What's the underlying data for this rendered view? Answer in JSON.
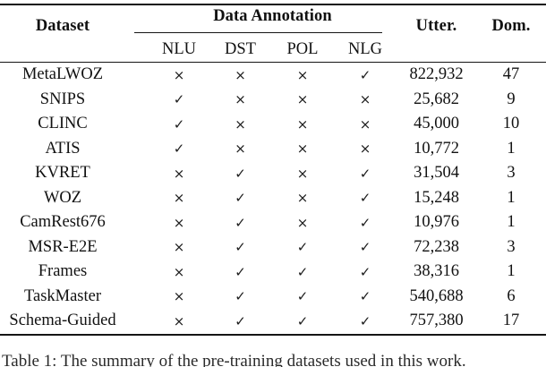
{
  "header": {
    "dataset": "Dataset",
    "group": "Data Annotation",
    "sub": [
      "NLU",
      "DST",
      "POL",
      "NLG"
    ],
    "utter": "Utter.",
    "dom": "Dom."
  },
  "marks_legend": {
    "annotated": "✓",
    "not_annotated": "×"
  },
  "rows": [
    {
      "name": "MetaLWOZ",
      "marks": [
        "×",
        "×",
        "×",
        "✓"
      ],
      "utter": "822,932",
      "dom": "47"
    },
    {
      "name": "SNIPS",
      "marks": [
        "✓",
        "×",
        "×",
        "×"
      ],
      "utter": "25,682",
      "dom": "9"
    },
    {
      "name": "CLINC",
      "marks": [
        "✓",
        "×",
        "×",
        "×"
      ],
      "utter": "45,000",
      "dom": "10"
    },
    {
      "name": "ATIS",
      "marks": [
        "✓",
        "×",
        "×",
        "×"
      ],
      "utter": "10,772",
      "dom": "1"
    },
    {
      "name": "KVRET",
      "marks": [
        "×",
        "✓",
        "×",
        "✓"
      ],
      "utter": "31,504",
      "dom": "3"
    },
    {
      "name": "WOZ",
      "marks": [
        "×",
        "✓",
        "×",
        "✓"
      ],
      "utter": "15,248",
      "dom": "1"
    },
    {
      "name": "CamRest676",
      "marks": [
        "×",
        "✓",
        "×",
        "✓"
      ],
      "utter": "10,976",
      "dom": "1"
    },
    {
      "name": "MSR-E2E",
      "marks": [
        "×",
        "✓",
        "✓",
        "✓"
      ],
      "utter": "72,238",
      "dom": "3"
    },
    {
      "name": "Frames",
      "marks": [
        "×",
        "✓",
        "✓",
        "✓"
      ],
      "utter": "38,316",
      "dom": "1"
    },
    {
      "name": "TaskMaster",
      "marks": [
        "×",
        "✓",
        "✓",
        "✓"
      ],
      "utter": "540,688",
      "dom": "6"
    },
    {
      "name": "Schema-Guided",
      "marks": [
        "×",
        "✓",
        "✓",
        "✓"
      ],
      "utter": "757,380",
      "dom": "17"
    }
  ],
  "caption_partial": "Table 1: The summary of the pre-training datasets used in this work.",
  "colors": {
    "text": "#111111",
    "rule": "#151515",
    "background": "#ffffff"
  }
}
